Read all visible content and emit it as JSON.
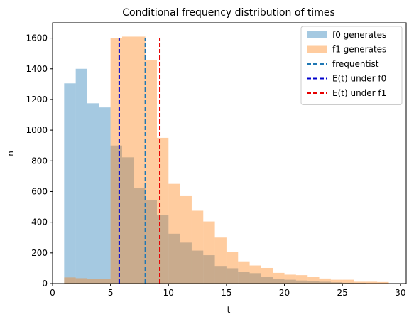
{
  "chart_data": {
    "type": "bar",
    "title": "Conditional frequency distribution of times",
    "xlabel": "t",
    "ylabel": "n",
    "xlim": [
      0,
      30.5
    ],
    "ylim": [
      0,
      1700
    ],
    "xticks": [
      0,
      5,
      10,
      15,
      20,
      25,
      30
    ],
    "yticks": [
      0,
      200,
      400,
      600,
      800,
      1000,
      1200,
      1400,
      1600
    ],
    "grid": false,
    "legend_position": "top-right",
    "histograms": [
      {
        "name": "f0 generates",
        "color": "#1f77b4",
        "alpha": 0.4,
        "bin_start": 1,
        "bin_width": 1,
        "counts": [
          1305,
          1400,
          1175,
          1148,
          900,
          823,
          625,
          545,
          445,
          325,
          267,
          215,
          185,
          115,
          100,
          75,
          68,
          45,
          30,
          25,
          20,
          18,
          12,
          8,
          5,
          4,
          2,
          1
        ]
      },
      {
        "name": "f1 generates",
        "color": "#ff7f0e",
        "alpha": 0.4,
        "bin_start": 1,
        "bin_width": 1,
        "counts": [
          40,
          35,
          28,
          28,
          1600,
          1610,
          1610,
          1455,
          950,
          650,
          570,
          475,
          405,
          300,
          205,
          145,
          118,
          102,
          70,
          58,
          55,
          42,
          33,
          25,
          25,
          12,
          12,
          10
        ]
      }
    ],
    "vlines": [
      {
        "name": "frequentist",
        "x": 8.0,
        "color": "#1f77b4",
        "ymax": 1600
      },
      {
        "name": "E(t) under f0",
        "x": 5.75,
        "color": "#0000cc",
        "ymax": 1600
      },
      {
        "name": "E(t) under f1",
        "x": 9.25,
        "color": "#e60000",
        "ymax": 1600
      }
    ]
  }
}
